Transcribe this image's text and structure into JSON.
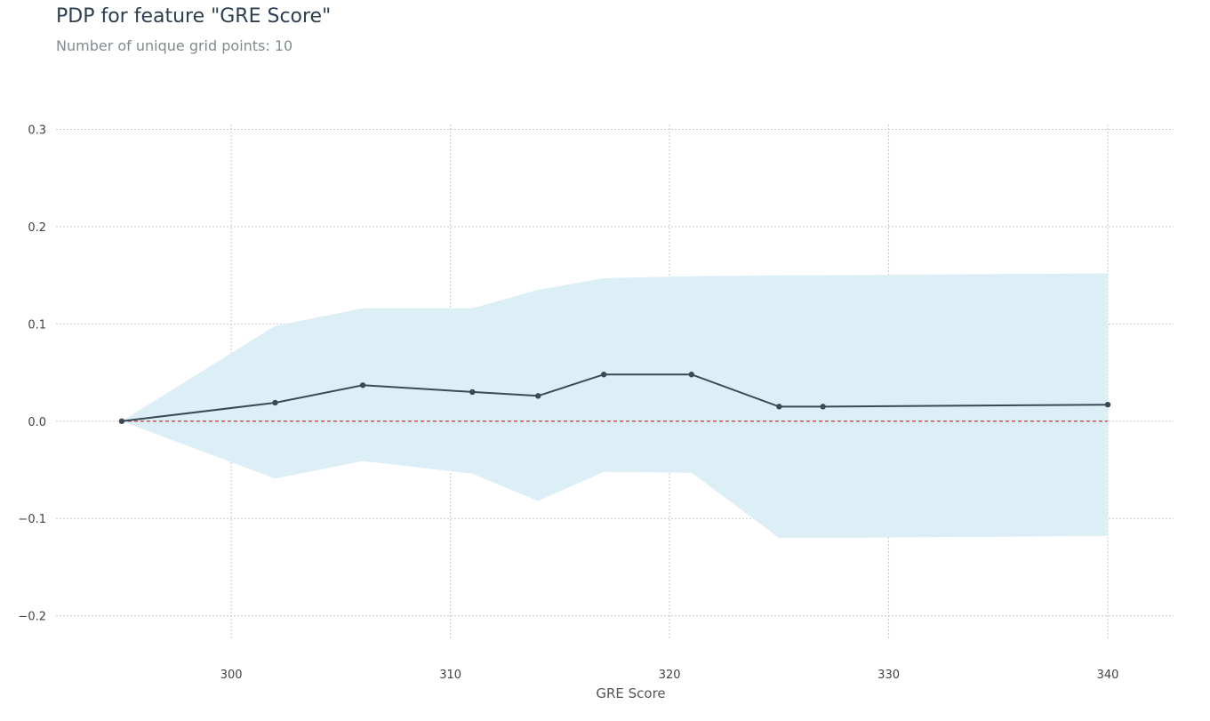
{
  "title": "PDP for feature \"GRE Score\"",
  "subtitle": "Number of unique grid points: 10",
  "colors": {
    "line": "#3b4a52",
    "band": "#dceff7",
    "baseline": "#c0392b",
    "grid": "#c8c8c8",
    "title": "#2c3e50",
    "subtitle": "#7f8c8d"
  },
  "chart_data": {
    "type": "line",
    "title": "PDP for feature \"GRE Score\"",
    "subtitle": "Number of unique grid points: 10",
    "xlabel": "GRE Score",
    "ylabel": "",
    "xlim": [
      292,
      343
    ],
    "ylim": [
      -0.225,
      0.305
    ],
    "x_ticks": [
      300,
      310,
      320,
      330,
      340
    ],
    "y_ticks": [
      -0.2,
      -0.1,
      0.0,
      0.1,
      0.2,
      0.3
    ],
    "x_tick_labels": [
      "300",
      "310",
      "320",
      "330",
      "340"
    ],
    "y_tick_labels": [
      "−0.2",
      "−0.1",
      "0.0",
      "0.1",
      "0.2",
      "0.3"
    ],
    "grid": true,
    "series": [
      {
        "x": [
          295,
          302,
          306,
          311,
          314,
          317,
          321,
          325,
          327,
          340
        ],
        "values": [
          0.0,
          0.019,
          0.037,
          0.03,
          0.026,
          0.048,
          0.048,
          0.015,
          0.015,
          0.017
        ],
        "upper": [
          0.0,
          0.098,
          0.116,
          0.116,
          0.135,
          0.147,
          0.149,
          0.15,
          0.15,
          0.152
        ],
        "lower": [
          0.0,
          -0.059,
          -0.041,
          -0.054,
          -0.082,
          -0.052,
          -0.053,
          -0.12,
          -0.12,
          -0.118
        ]
      }
    ],
    "reference_line": {
      "y": 0.0,
      "style": "dashed"
    }
  }
}
